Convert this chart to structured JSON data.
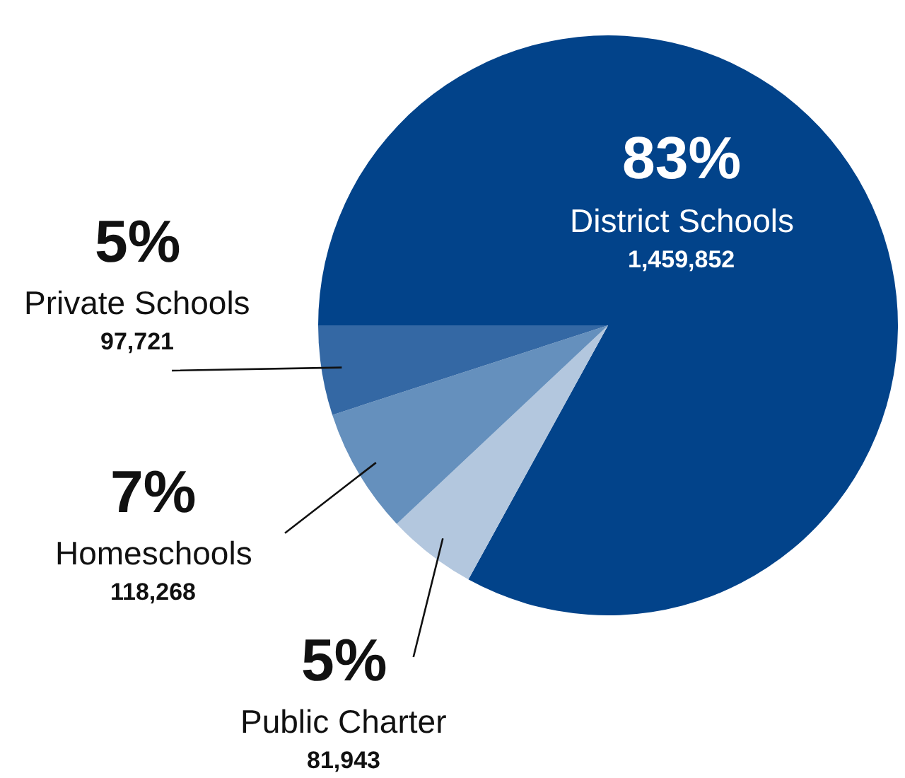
{
  "chart_data": {
    "type": "pie",
    "categories": [
      "District Schools",
      "Public Charter",
      "Homeschools",
      "Private Schools"
    ],
    "values": [
      83,
      5,
      7,
      5
    ],
    "colors": [
      "#02438a",
      "#b3c7de",
      "#6590bd",
      "#3468a4"
    ],
    "value_labels": [
      "83%",
      "5%",
      "7%",
      "5%"
    ],
    "annotations": [
      "1,459,852",
      "81,943",
      "118,268",
      "97,721"
    ]
  }
}
